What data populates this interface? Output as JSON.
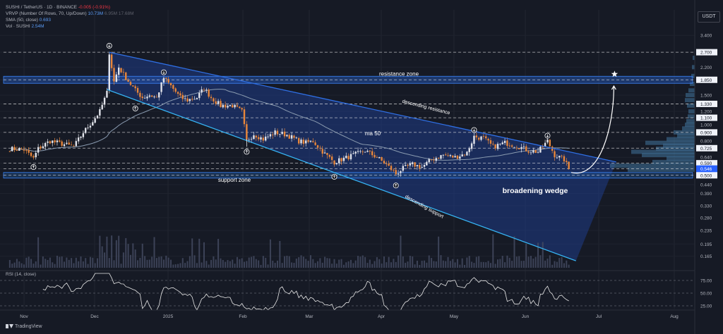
{
  "header": {
    "symbol": "SUSHI / TetherUS · 1D · BINANCE",
    "change": "-0.005 (-0.91%)",
    "vrvp_label": "VRVP (Number Of Rows, 70, Up/Down)",
    "vrvp_v1": "10.73M",
    "vrvp_v2": "6.95M",
    "vrvp_v3": "17.68M",
    "sma_label": "SMA (50, close)",
    "sma_value": "0.693",
    "vol_label": "Vol · SUSHI",
    "vol_value": "2.54M",
    "currency": "USDT"
  },
  "rsi": {
    "label": "RSI (14, close)"
  },
  "brand": {
    "name": "TradingView"
  },
  "colors": {
    "background": "#161a25",
    "up": "#e1e3ea",
    "down": "#e8863a",
    "channel": "#1f3c88",
    "resistance_line": "#2f6fe4",
    "support_line": "#36b3f2",
    "ma": "#8a9bb0",
    "rsi": "#e8e8e8",
    "volume_profile": "#3d6c93",
    "dashed": "#e8e8e8"
  },
  "chart_data": {
    "type": "candlestick",
    "title": "",
    "y_scale": "log",
    "ylim": [
      0.145,
      3.9
    ],
    "y_ticks": [
      "3.400",
      "2.700",
      "2.200",
      "1.850",
      "1.500",
      "1.330",
      "1.200",
      "1.100",
      "1.000",
      "0.900",
      "0.800",
      "0.725",
      "0.640",
      "0.590",
      "0.546",
      "0.500",
      "0.440",
      "0.390",
      "0.330",
      "0.280",
      "0.235",
      "0.195",
      "0.165"
    ],
    "highlighted_ticks": [
      "2.700",
      "1.850",
      "1.330",
      "1.100",
      "0.900",
      "0.725",
      "0.590",
      "0.546",
      "0.500"
    ],
    "x_labels": [
      "Nov",
      "Dec",
      "2025",
      "Feb",
      "Mar",
      "Apr",
      "May",
      "Jun",
      "Jul",
      "Aug"
    ],
    "price_path": [
      [
        "2024-10-26",
        0.72
      ],
      [
        "2024-11-01",
        0.71
      ],
      [
        "2024-11-05",
        0.63
      ],
      [
        "2024-11-07",
        0.72
      ],
      [
        "2024-11-12",
        0.8
      ],
      [
        "2024-11-17",
        0.77
      ],
      [
        "2024-11-22",
        0.74
      ],
      [
        "2024-11-26",
        0.9
      ],
      [
        "2024-11-30",
        1.05
      ],
      [
        "2024-12-03",
        1.2
      ],
      [
        "2024-12-06",
        1.55
      ],
      [
        "2024-12-07",
        2.7
      ],
      [
        "2024-12-09",
        1.8
      ],
      [
        "2024-12-11",
        2.2
      ],
      [
        "2024-12-14",
        1.9
      ],
      [
        "2024-12-18",
        1.6
      ],
      [
        "2024-12-21",
        1.45
      ],
      [
        "2024-12-24",
        1.5
      ],
      [
        "2024-12-27",
        1.45
      ],
      [
        "2024-12-30",
        1.9
      ],
      [
        "2025-01-02",
        1.7
      ],
      [
        "2025-01-06",
        1.45
      ],
      [
        "2025-01-09",
        1.4
      ],
      [
        "2025-01-13",
        1.45
      ],
      [
        "2025-01-16",
        1.65
      ],
      [
        "2025-01-19",
        1.45
      ],
      [
        "2025-01-23",
        1.3
      ],
      [
        "2025-01-28",
        1.3
      ],
      [
        "2025-02-01",
        1.2
      ],
      [
        "2025-02-03",
        0.8
      ],
      [
        "2025-02-06",
        0.88
      ],
      [
        "2025-02-10",
        0.82
      ],
      [
        "2025-02-15",
        0.9
      ],
      [
        "2025-02-20",
        0.87
      ],
      [
        "2025-02-25",
        0.8
      ],
      [
        "2025-02-28",
        0.78
      ],
      [
        "2025-03-03",
        0.8
      ],
      [
        "2025-03-08",
        0.67
      ],
      [
        "2025-03-12",
        0.6
      ],
      [
        "2025-03-15",
        0.62
      ],
      [
        "2025-03-20",
        0.66
      ],
      [
        "2025-03-25",
        0.7
      ],
      [
        "2025-03-30",
        0.64
      ],
      [
        "2025-04-03",
        0.58
      ],
      [
        "2025-04-07",
        0.51
      ],
      [
        "2025-04-10",
        0.55
      ],
      [
        "2025-04-14",
        0.58
      ],
      [
        "2025-04-18",
        0.56
      ],
      [
        "2025-04-22",
        0.62
      ],
      [
        "2025-04-27",
        0.66
      ],
      [
        "2025-05-02",
        0.64
      ],
      [
        "2025-05-07",
        0.68
      ],
      [
        "2025-05-10",
        0.85
      ],
      [
        "2025-05-14",
        0.83
      ],
      [
        "2025-05-18",
        0.74
      ],
      [
        "2025-05-23",
        0.78
      ],
      [
        "2025-05-28",
        0.75
      ],
      [
        "2025-06-02",
        0.7
      ],
      [
        "2025-06-06",
        0.69
      ],
      [
        "2025-06-10",
        0.8
      ],
      [
        "2025-06-13",
        0.66
      ],
      [
        "2025-06-17",
        0.62
      ],
      [
        "2025-06-19",
        0.546
      ]
    ],
    "series": [
      {
        "name": "SMA (50, close)",
        "last": 0.693
      },
      {
        "name": "Vol · SUSHI",
        "last": "2.54M"
      },
      {
        "name": "RSI (14, close)",
        "levels": [
          75.0,
          50.0,
          25.0
        ]
      }
    ],
    "rsi_ticks": [
      "75.00",
      "50.00",
      "25.00"
    ],
    "annotations": [
      "resistance zone",
      "descending resistance",
      "ma 50",
      "support zone",
      "descending support",
      "broadening wedge"
    ],
    "reference_levels": {
      "resistance_zone": 1.85,
      "support_zone": 0.5
    },
    "trendlines": {
      "descending_resistance": {
        "from": [
          "2024-12-07",
          2.7
        ],
        "to": [
          "2025-07-09",
          0.6
        ]
      },
      "descending_support": {
        "from": [
          "2024-12-06",
          1.62
        ],
        "to": [
          "2025-06-22",
          0.155
        ]
      }
    },
    "projection": {
      "from": [
        "2025-06-20",
        0.52
      ],
      "to": [
        "2025-07-08",
        1.7
      ]
    }
  }
}
